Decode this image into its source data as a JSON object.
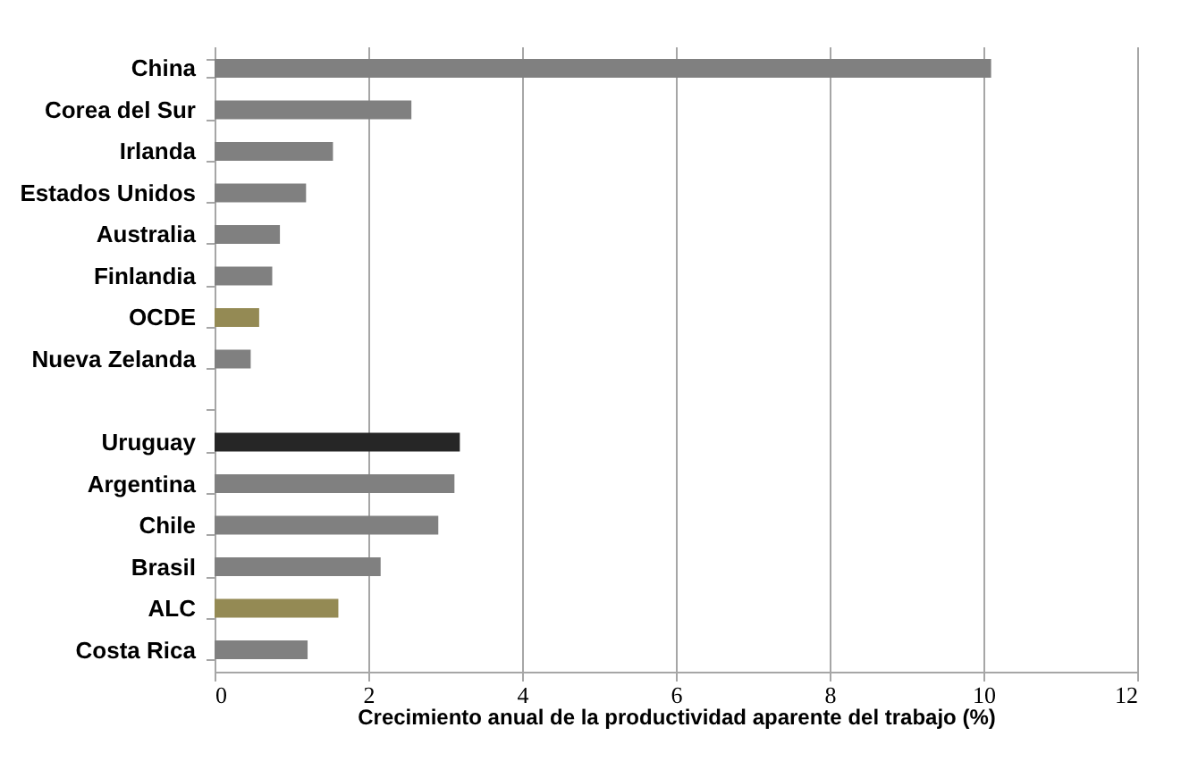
{
  "chart_data": {
    "type": "bar",
    "orientation": "horizontal",
    "xlabel": "Crecimiento anual de la productividad aparente del trabajo (%)",
    "categories": [
      "China",
      "Corea del Sur",
      "Irlanda",
      "Estados Unidos",
      "Australia",
      "Finlandia",
      "OCDE",
      "Nueva Zelanda",
      null,
      "Uruguay",
      "Argentina",
      "Chile",
      "Brasil",
      "ALC",
      "Costa Rica"
    ],
    "values": [
      10.1,
      2.56,
      1.54,
      1.19,
      0.85,
      0.75,
      0.58,
      0.47,
      null,
      3.19,
      3.12,
      2.91,
      2.16,
      1.61,
      1.21
    ],
    "colors": [
      "#808080",
      "#808080",
      "#808080",
      "#808080",
      "#808080",
      "#808080",
      "#948a54",
      "#808080",
      "#808080",
      "#262626",
      "#808080",
      "#808080",
      "#808080",
      "#948a54",
      "#808080"
    ],
    "xlim": [
      0,
      12
    ],
    "xticks": [
      0,
      2,
      4,
      6,
      8,
      10,
      12
    ],
    "grid": "x"
  }
}
